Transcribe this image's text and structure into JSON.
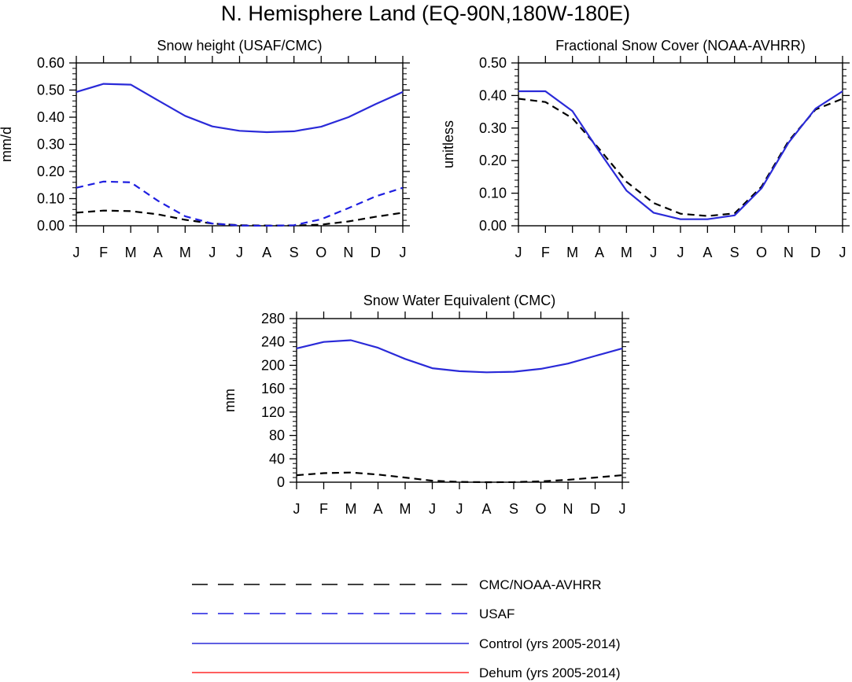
{
  "figure": {
    "title": "N. Hemisphere Land (EQ-90N,180W-180E)"
  },
  "legend": [
    {
      "label": "CMC/NOAA-AVHRR",
      "color": "#000000",
      "style": "dashed"
    },
    {
      "label": "USAF",
      "color": "#1f1fe0",
      "style": "dashed"
    },
    {
      "label": "Control (yrs 2005-2014)",
      "color": "#2a2ad8",
      "style": "solid"
    },
    {
      "label": "Dehum (yrs 2005-2014)",
      "color": "#ff2a2a",
      "style": "solid"
    }
  ],
  "chart_data": [
    {
      "type": "line",
      "title": "Snow height (USAF/CMC)",
      "xlabel": "",
      "ylabel": "mm/d",
      "categories": [
        "J",
        "F",
        "M",
        "A",
        "M",
        "J",
        "J",
        "A",
        "S",
        "O",
        "N",
        "D",
        "J"
      ],
      "ylim": [
        0,
        0.6
      ],
      "yticks": [
        0,
        0.1,
        0.2,
        0.3,
        0.4,
        0.5,
        0.6
      ],
      "ytick_labels": [
        "0.00",
        "0.10",
        "0.20",
        "0.30",
        "0.40",
        "0.50",
        "0.60"
      ],
      "series": [
        {
          "name": "CMC/NOAA-AVHRR",
          "color": "#000000",
          "style": "dashed",
          "values": [
            0.048,
            0.056,
            0.054,
            0.042,
            0.022,
            0.008,
            0.002,
            0.001,
            0.001,
            0.004,
            0.016,
            0.033,
            0.048
          ]
        },
        {
          "name": "USAF",
          "color": "#1f1fe0",
          "style": "dashed",
          "values": [
            0.14,
            0.163,
            0.16,
            0.092,
            0.035,
            0.008,
            0.001,
            0.0,
            0.002,
            0.024,
            0.065,
            0.108,
            0.14
          ]
        },
        {
          "name": "Control (yrs 2005-2014)",
          "color": "#2a2ad8",
          "style": "solid",
          "values": [
            0.493,
            0.523,
            0.52,
            0.462,
            0.405,
            0.366,
            0.35,
            0.345,
            0.348,
            0.365,
            0.4,
            0.448,
            0.493
          ]
        }
      ]
    },
    {
      "type": "line",
      "title": "Fractional Snow Cover (NOAA-AVHRR)",
      "xlabel": "",
      "ylabel": "unitless",
      "categories": [
        "J",
        "F",
        "M",
        "A",
        "M",
        "J",
        "J",
        "A",
        "S",
        "O",
        "N",
        "D",
        "J"
      ],
      "ylim": [
        0,
        0.5
      ],
      "yticks": [
        0,
        0.1,
        0.2,
        0.3,
        0.4,
        0.5
      ],
      "ytick_labels": [
        "0.00",
        "0.10",
        "0.20",
        "0.30",
        "0.40",
        "0.50"
      ],
      "series": [
        {
          "name": "CMC/NOAA-AVHRR",
          "color": "#000000",
          "style": "dashed",
          "values": [
            0.39,
            0.38,
            0.33,
            0.235,
            0.135,
            0.07,
            0.037,
            0.03,
            0.038,
            0.12,
            0.26,
            0.357,
            0.39
          ]
        },
        {
          "name": "Control (yrs 2005-2014)",
          "color": "#2a2ad8",
          "style": "solid",
          "values": [
            0.413,
            0.413,
            0.352,
            0.227,
            0.108,
            0.04,
            0.02,
            0.02,
            0.032,
            0.115,
            0.255,
            0.36,
            0.413
          ]
        }
      ]
    },
    {
      "type": "line",
      "title": "Snow Water Equivalent (CMC)",
      "xlabel": "",
      "ylabel": "mm",
      "categories": [
        "J",
        "F",
        "M",
        "A",
        "M",
        "J",
        "J",
        "A",
        "S",
        "O",
        "N",
        "D",
        "J"
      ],
      "ylim": [
        0,
        280
      ],
      "yticks": [
        0,
        40,
        80,
        120,
        160,
        200,
        240,
        280
      ],
      "ytick_labels": [
        "0",
        "40",
        "80",
        "120",
        "160",
        "200",
        "240",
        "280"
      ],
      "series": [
        {
          "name": "CMC/NOAA-AVHRR",
          "color": "#000000",
          "style": "dashed",
          "values": [
            12,
            15.5,
            16.5,
            13,
            8,
            2.5,
            0.5,
            0,
            0.2,
            1.5,
            4,
            8,
            12
          ]
        },
        {
          "name": "Control (yrs 2005-2014)",
          "color": "#2a2ad8",
          "style": "solid",
          "values": [
            229,
            240,
            243,
            230,
            211,
            195,
            190,
            188,
            189,
            194,
            203,
            216,
            229
          ]
        }
      ]
    }
  ]
}
